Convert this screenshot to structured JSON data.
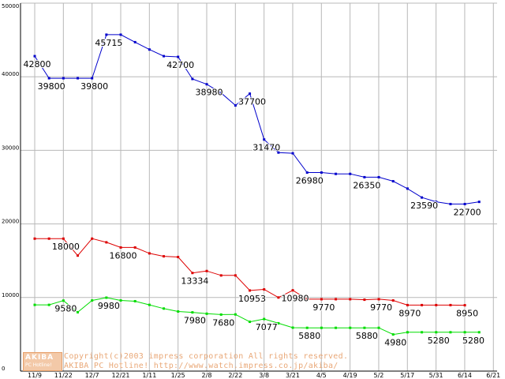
{
  "watermark": {
    "logo_top": "AKIBA",
    "logo_bottom": "PC Hotline!",
    "line1": "Copyright(c)2003 impress corporation All rights reserved.",
    "line2": "AKIBA PC Hotline!  http://www.watch.impress.co.jp/akiba/"
  },
  "colors": {
    "blue": "#0000cc",
    "red": "#dd0000",
    "green": "#00dd00",
    "grid": "#b8b8b8",
    "watermark": "#e9a878"
  },
  "chart_data": {
    "type": "line",
    "title": "",
    "xlabel": "",
    "ylabel": "",
    "ylim": [
      0,
      50000
    ],
    "y_ticks": [
      0,
      10000,
      20000,
      30000,
      40000,
      50000
    ],
    "grid": true,
    "x_tick_labels": [
      "11/9",
      "11/22",
      "12/7",
      "12/21",
      "1/11",
      "1/25",
      "2/8",
      "2/22",
      "3/8",
      "3/21",
      "4/5",
      "4/19",
      "5/2",
      "5/17",
      "5/31",
      "6/14",
      "6/21"
    ],
    "series": [
      {
        "color": "#0000cc",
        "values": [
          42800,
          39800,
          39800,
          39800,
          39800,
          45715,
          45715,
          44700,
          43700,
          42800,
          42700,
          39700,
          38980,
          37800,
          36100,
          37700,
          31470,
          29700,
          29600,
          26980,
          26980,
          26800,
          26800,
          26350,
          26350,
          25800,
          24800,
          23590,
          23000,
          22700,
          22700,
          23000
        ],
        "labels": {
          "0": "42800",
          "1": "39800",
          "4": "39800",
          "5": "45715",
          "10": "42700",
          "12": "38980",
          "15": "37700",
          "16": "31470",
          "19": "26980",
          "23": "26350",
          "27": "23590",
          "30": "22700"
        }
      },
      {
        "color": "#dd0000",
        "values": [
          18000,
          18000,
          18000,
          15700,
          18000,
          17500,
          16800,
          16800,
          16000,
          15600,
          15500,
          13334,
          13600,
          13000,
          13000,
          10953,
          11100,
          10000,
          10980,
          9770,
          9770,
          9770,
          9770,
          9700,
          9770,
          9600,
          8970,
          8970,
          8970,
          8970,
          8950
        ],
        "labels": {
          "2": "18000",
          "6": "16800",
          "11": "13334",
          "15": "10953",
          "18": "10980",
          "20": "9770",
          "24": "9770",
          "26": "8970",
          "30": "8950"
        }
      },
      {
        "color": "#00dd00",
        "values": [
          9000,
          9000,
          9580,
          8000,
          9600,
          9980,
          9600,
          9500,
          9000,
          8500,
          8100,
          7980,
          7800,
          7680,
          7700,
          6700,
          7077,
          6500,
          5900,
          5880,
          5880,
          5880,
          5880,
          5880,
          5880,
          4980,
          5280,
          5280,
          5280,
          5280,
          5280,
          5280
        ],
        "labels": {
          "2": "9580",
          "5": "9980",
          "11": "7980",
          "13": "7680",
          "16": "7077",
          "19": "5880",
          "23": "5880",
          "25": "4980",
          "28": "5280",
          "31": "5280"
        }
      }
    ]
  }
}
